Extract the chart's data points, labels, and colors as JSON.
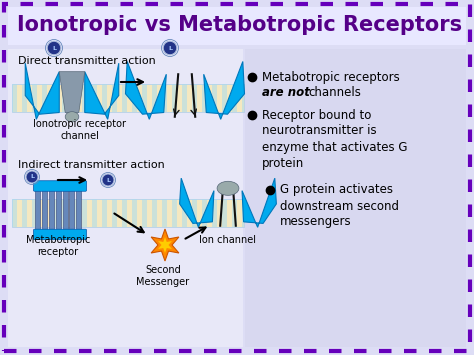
{
  "title": "Ionotropic vs Metabotropic Receptors",
  "title_color": "#550088",
  "title_fontsize": 15,
  "bg_color": "#ddddf5",
  "border_color": "#6600bb",
  "receptor_blue": "#00aaee",
  "receptor_blue2": "#55bbff",
  "receptor_gray": "#888899",
  "bullet_texts_line1": [
    "Metabotropic receptors",
    "Receptor bound to",
    "G protein activates"
  ],
  "bullet_texts_line2": [
    "are not channels",
    "neurotransmitter is",
    "downstream second"
  ],
  "bullet_texts_line3": [
    "",
    "enzyme that activates G",
    "messengers"
  ],
  "bullet_texts_line4": [
    "",
    "protein",
    ""
  ],
  "bullet_bold": [
    "are not",
    "",
    ""
  ],
  "left_label_top": "Direct transmitter action",
  "left_label_bottom": "Indirect transmitter action",
  "caption_ionotropic": "Ionotropic receptor\nchannel",
  "caption_metabotropic": "Metabotropic\nreceptor",
  "caption_second": "Second\nMessenger",
  "caption_ion": "Ion channel",
  "star_color": "#ff8800",
  "star_inner_color": "#ffdd00",
  "ligand_color_dark": "#223388",
  "figsize": [
    4.74,
    3.55
  ],
  "dpi": 100
}
